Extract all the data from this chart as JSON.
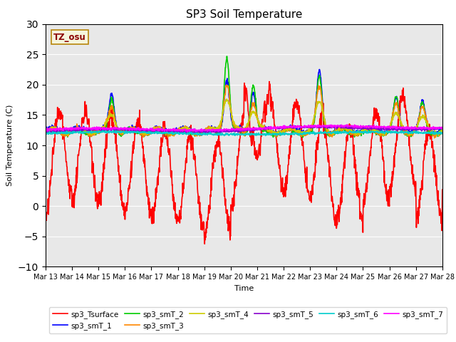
{
  "title": "SP3 Soil Temperature",
  "ylabel": "Soil Temperature (C)",
  "xlabel": "Time",
  "ylim": [
    -10,
    30
  ],
  "yticks": [
    -10,
    -5,
    0,
    5,
    10,
    15,
    20,
    25,
    30
  ],
  "xtick_labels": [
    "Mar 13",
    "Mar 14",
    "Mar 15",
    "Mar 16",
    "Mar 17",
    "Mar 18",
    "Mar 19",
    "Mar 20",
    "Mar 21",
    "Mar 22",
    "Mar 23",
    "Mar 24",
    "Mar 25",
    "Mar 26",
    "Mar 27",
    "Mar 28"
  ],
  "bg_color": "#e8e8e8",
  "annotation_text": "TZ_osu",
  "annotation_color": "#8b0000",
  "annotation_bg": "#f5f5dc",
  "series_names": [
    "sp3_Tsurface",
    "sp3_smT_1",
    "sp3_smT_2",
    "sp3_smT_3",
    "sp3_smT_4",
    "sp3_smT_5",
    "sp3_smT_6",
    "sp3_smT_7"
  ],
  "series_colors": [
    "#ff0000",
    "#0000ff",
    "#00cc00",
    "#ff8800",
    "#cccc00",
    "#8800cc",
    "#00cccc",
    "#ff00ff"
  ],
  "lw": 1.2
}
